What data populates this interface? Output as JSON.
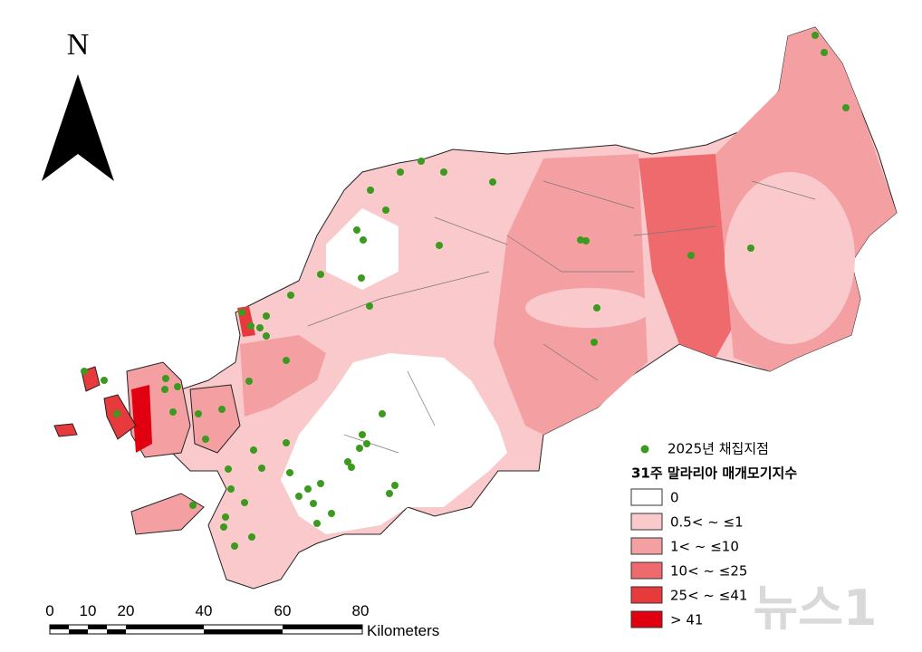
{
  "map": {
    "north_label": "N",
    "legend": {
      "point_label": "2025년 채집지점",
      "title": "31주 말라리아 매개모기지수",
      "classes": [
        "0",
        "0.5< ~ ≤1",
        "1< ~ ≤10",
        "10< ~ ≤25",
        "25< ~ ≤41",
        "> 41"
      ]
    },
    "scale": {
      "ticks": [
        0,
        10,
        20,
        40,
        60,
        80
      ],
      "unit": "Kilometers"
    },
    "watermark": "뉴스1"
  }
}
